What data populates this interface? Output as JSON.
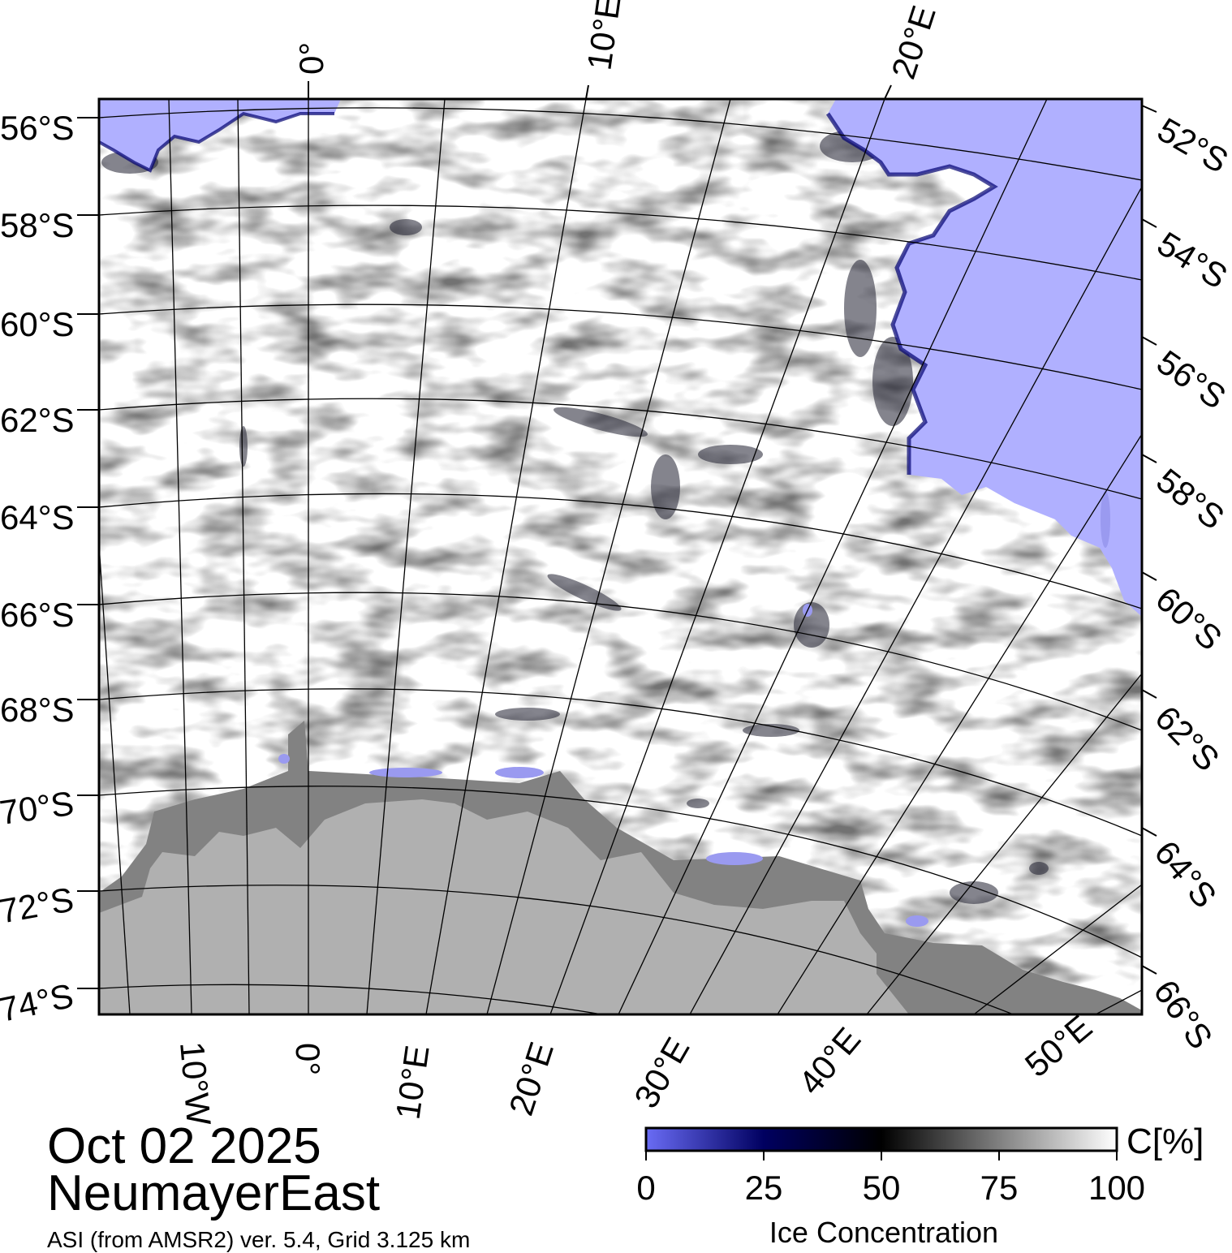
{
  "title": {
    "date": "Oct 02 2025",
    "region": "NeumayerEast",
    "source": "ASI (from AMSR2) ver. 5.4,  Grid 3.125 km"
  },
  "colorbar": {
    "unit": "C[%]",
    "label": "Ice Concentration",
    "ticks": [
      "0",
      "25",
      "50",
      "75",
      "100"
    ],
    "colors": [
      "#6a6cf5",
      "#000060",
      "#000000",
      "#808080",
      "#ffffff"
    ]
  },
  "map": {
    "colors": {
      "open_water": "#b0b0ff",
      "land": "#b0b0b0",
      "ice_shelf": "#828282",
      "sea_ice": "#ffffff",
      "grid": "#000000"
    },
    "left_lat_labels": [
      "56°S",
      "58°S",
      "60°S",
      "62°S",
      "64°S",
      "66°S",
      "68°S",
      "70°S",
      "72°S",
      "74°S"
    ],
    "right_lat_labels": [
      "52°S",
      "54°S",
      "56°S",
      "58°S",
      "60°S",
      "62°S",
      "64°S",
      "66°S"
    ],
    "top_lon_labels": [
      "0°",
      "10°E",
      "20°E"
    ],
    "bottom_lon_labels": [
      "10°W",
      "0°",
      "10°E",
      "20°E",
      "30°E",
      "40°E",
      "50°E"
    ]
  }
}
